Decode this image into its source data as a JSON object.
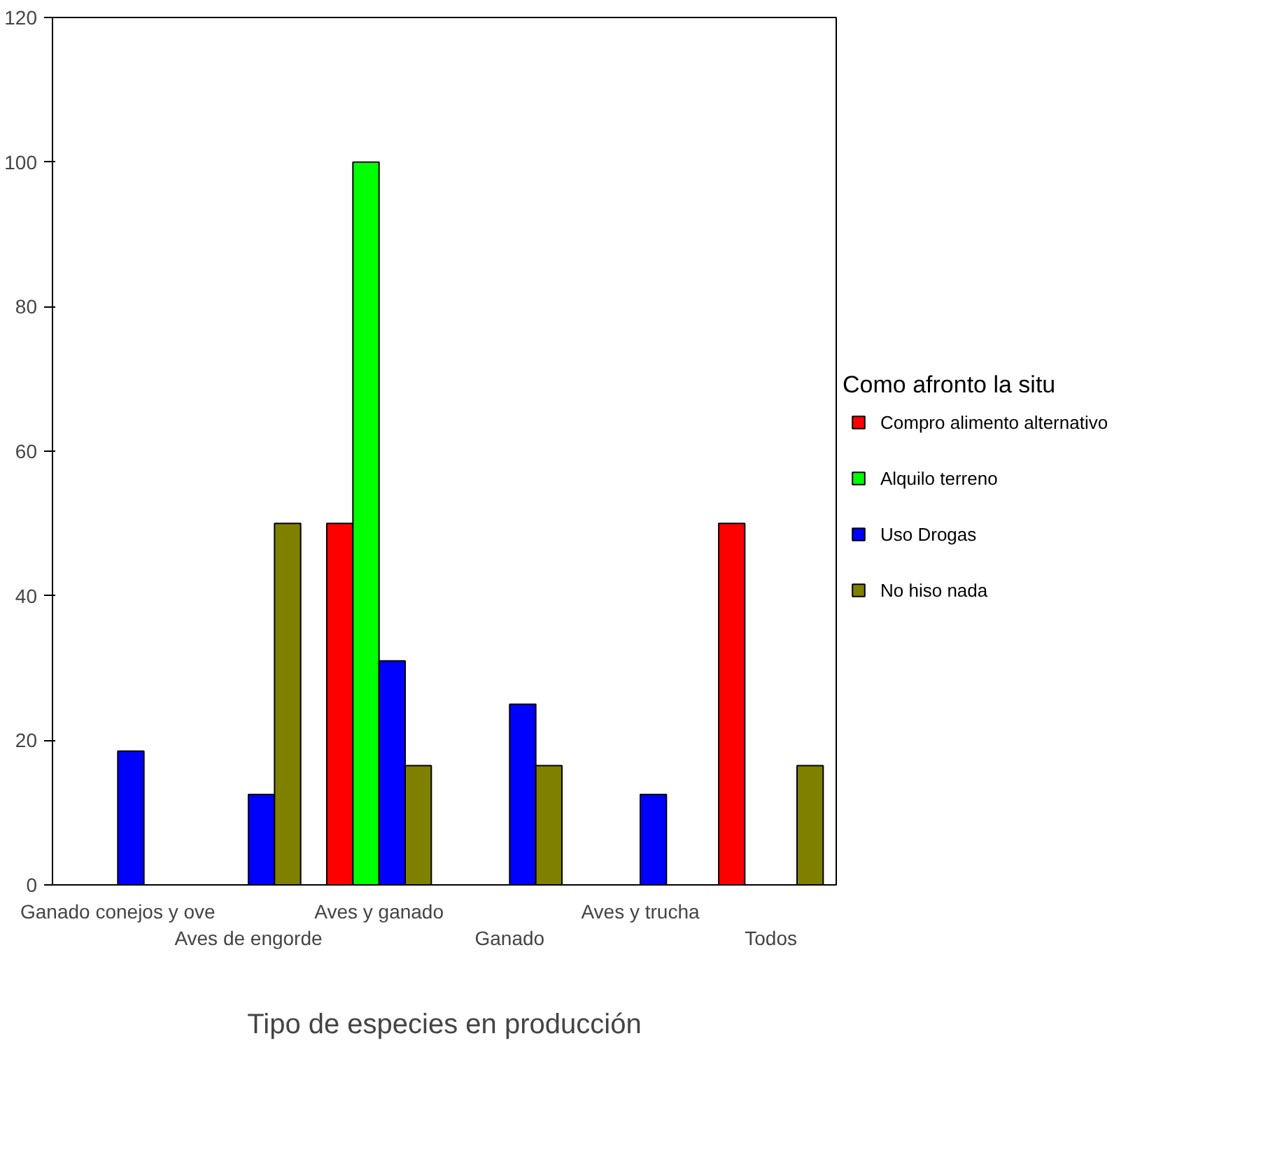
{
  "chart_data": {
    "type": "bar",
    "xlabel": "Tipo de especies en producción",
    "legend_title": "Como afronto la situ",
    "legend": "right",
    "categories": [
      "Ganado conejos y ove",
      "Aves de engorde",
      "Aves y ganado",
      "Ganado",
      "Aves y trucha",
      "Todos"
    ],
    "series": [
      {
        "name": "Compro alimento alternativo",
        "color": "#ff0000",
        "values": [
          0,
          0,
          50,
          0,
          0,
          50
        ]
      },
      {
        "name": "Alquilo terreno",
        "color": "#00ff00",
        "values": [
          0,
          0,
          100,
          0,
          0,
          0
        ]
      },
      {
        "name": "Uso Drogas",
        "color": "#0000ff",
        "values": [
          18.5,
          12.5,
          31,
          25,
          12.5,
          0
        ]
      },
      {
        "name": "No hiso nada",
        "color": "#808000",
        "values": [
          0,
          50,
          16.5,
          16.5,
          0,
          16.5
        ]
      }
    ],
    "ylim": [
      0,
      120
    ],
    "yticks": [
      0,
      20,
      40,
      60,
      80,
      100,
      120
    ],
    "grid": false
  }
}
